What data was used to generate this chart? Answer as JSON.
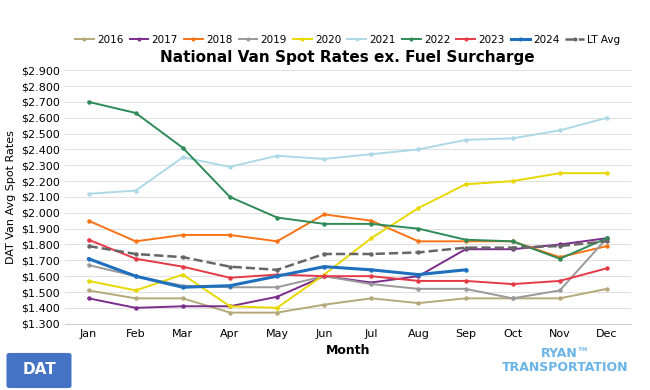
{
  "title": "National Van Spot Rates ex. Fuel Surcharge",
  "xlabel": "Month",
  "ylabel": "DAT Van Avg Spot Rates",
  "months": [
    "Jan",
    "Feb",
    "Mar",
    "Apr",
    "May",
    "Jun",
    "Jul",
    "Aug",
    "Sep",
    "Oct",
    "Nov",
    "Dec"
  ],
  "ylim": [
    1.3,
    2.9
  ],
  "yticks": [
    1.3,
    1.4,
    1.5,
    1.6,
    1.7,
    1.8,
    1.9,
    2.0,
    2.1,
    2.2,
    2.3,
    2.4,
    2.5,
    2.6,
    2.7,
    2.8,
    2.9
  ],
  "series": {
    "2016": {
      "color": "#b5a97a",
      "values": [
        1.51,
        1.46,
        1.46,
        1.37,
        1.37,
        1.42,
        1.46,
        1.43,
        1.46,
        1.46,
        1.46,
        1.52
      ],
      "marker": "o",
      "linewidth": 1.4,
      "linestyle": "-",
      "zorder": 2
    },
    "2017": {
      "color": "#7b2d8b",
      "values": [
        1.46,
        1.4,
        1.41,
        1.41,
        1.47,
        1.6,
        1.56,
        1.6,
        1.77,
        1.77,
        1.8,
        1.84
      ],
      "marker": "o",
      "linewidth": 1.4,
      "linestyle": "-",
      "zorder": 2
    },
    "2018": {
      "color": "#f97316",
      "values": [
        1.95,
        1.82,
        1.86,
        1.86,
        1.82,
        1.99,
        1.95,
        1.82,
        1.82,
        1.82,
        1.72,
        1.79
      ],
      "marker": "o",
      "linewidth": 1.4,
      "linestyle": "-",
      "zorder": 2
    },
    "2019": {
      "color": "#999999",
      "values": [
        1.67,
        1.6,
        1.54,
        1.53,
        1.53,
        1.6,
        1.55,
        1.52,
        1.52,
        1.46,
        1.51,
        1.84
      ],
      "marker": "o",
      "linewidth": 1.4,
      "linestyle": "-",
      "zorder": 2
    },
    "2020": {
      "color": "#e8d800",
      "values": [
        1.57,
        1.51,
        1.61,
        1.41,
        1.4,
        1.61,
        1.84,
        2.03,
        2.18,
        2.2,
        2.25,
        2.25
      ],
      "marker": "o",
      "linewidth": 1.4,
      "linestyle": "-",
      "zorder": 2
    },
    "2021": {
      "color": "#add8e6",
      "values": [
        2.12,
        2.14,
        2.35,
        2.29,
        2.36,
        2.34,
        2.37,
        2.4,
        2.46,
        2.47,
        2.52,
        2.6
      ],
      "marker": "o",
      "linewidth": 1.4,
      "linestyle": "-",
      "zorder": 2
    },
    "2022": {
      "color": "#2e8b57",
      "values": [
        2.7,
        2.63,
        2.41,
        2.1,
        1.97,
        1.93,
        1.93,
        1.9,
        1.83,
        1.82,
        1.71,
        1.84
      ],
      "marker": "o",
      "linewidth": 1.4,
      "linestyle": "-",
      "zorder": 2
    },
    "2023": {
      "color": "#e63946",
      "values": [
        1.83,
        1.71,
        1.66,
        1.59,
        1.61,
        1.6,
        1.6,
        1.57,
        1.57,
        1.55,
        1.57,
        1.65
      ],
      "marker": "o",
      "linewidth": 1.4,
      "linestyle": "-",
      "zorder": 2
    },
    "2024": {
      "color": "#1f6fbf",
      "values": [
        1.71,
        1.6,
        1.53,
        1.54,
        1.6,
        1.66,
        1.64,
        1.61,
        1.64,
        null,
        null,
        null
      ],
      "marker": "o",
      "linewidth": 2.2,
      "linestyle": "-",
      "zorder": 3
    },
    "LT Avg": {
      "color": "#666666",
      "values": [
        1.79,
        1.74,
        1.72,
        1.66,
        1.64,
        1.74,
        1.74,
        1.75,
        1.78,
        1.78,
        1.79,
        1.82
      ],
      "marker": "o",
      "linewidth": 1.8,
      "linestyle": "--",
      "zorder": 2
    }
  },
  "background_color": "#ffffff",
  "grid_color": "#e0e0e0",
  "dat_logo_color": "#4472c4",
  "ryan_color": "#6ab4e8",
  "legend_fontsize": 7.5,
  "title_fontsize": 11,
  "axis_label_fontsize": 9,
  "tick_fontsize": 8
}
